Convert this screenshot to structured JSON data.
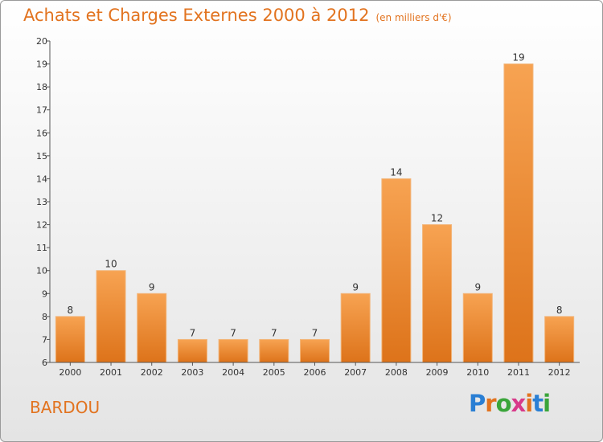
{
  "header": {
    "title": "Achats et Charges Externes 2000 à 2012",
    "subtitle": "(en milliers d'€)"
  },
  "footer": {
    "commune": "BARDOU",
    "logo_text": "Proxiti",
    "logo_colors": [
      "#2a7fd4",
      "#e2731f",
      "#3aa53a",
      "#d83a8a",
      "#e2731f",
      "#2a7fd4",
      "#3aa53a"
    ]
  },
  "colors": {
    "bar_top": "#f7a352",
    "bar_bottom": "#dd731a",
    "text": "#e2731f"
  },
  "chart_data": {
    "type": "bar",
    "categories": [
      "2000",
      "2001",
      "2002",
      "2003",
      "2004",
      "2005",
      "2006",
      "2007",
      "2008",
      "2009",
      "2010",
      "2011",
      "2012"
    ],
    "values": [
      8,
      10,
      9,
      7,
      7,
      7,
      7,
      9,
      14,
      12,
      9,
      19,
      8
    ],
    "ylim": [
      6,
      20
    ],
    "yticks": [
      6,
      7,
      8,
      9,
      10,
      11,
      12,
      13,
      14,
      15,
      16,
      17,
      18,
      19,
      20
    ],
    "grid": false,
    "legend": "none"
  }
}
